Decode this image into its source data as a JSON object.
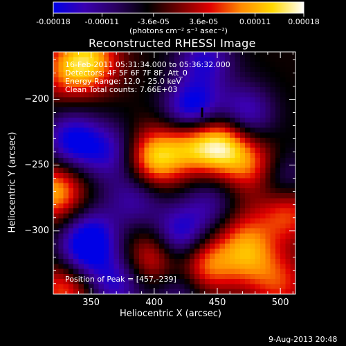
{
  "colorbar": {
    "tick_labels": [
      "-0.00018",
      "-0.00011",
      "-3.6e-05",
      "3.6e-05",
      "0.00011",
      "0.00018"
    ],
    "unit_label": "(photons cm⁻² s⁻¹ asec⁻²)",
    "colors": [
      "#0000e6",
      "#3a00b0",
      "#2a0060",
      "#000000",
      "#700000",
      "#e00000",
      "#ff8a00",
      "#ffd800",
      "#ffffff"
    ]
  },
  "chart_data": {
    "type": "heatmap",
    "title": "Reconstructed RHESSI Image",
    "xlabel": "Heliocentric X (arcsec)",
    "ylabel": "Heliocentric Y (arcsec)",
    "xlim": [
      320,
      512
    ],
    "ylim": [
      -348,
      -164
    ],
    "x_ticks": [
      350,
      400,
      450,
      500
    ],
    "y_ticks": [
      -200,
      -250,
      -300
    ],
    "x_tick_labels": [
      "350",
      "400",
      "450",
      "500"
    ],
    "y_tick_labels": [
      "−200",
      "−250",
      "−300"
    ],
    "value_range": [
      -0.00018,
      0.00018
    ],
    "blobs": [
      {
        "x": 350,
        "y": -170,
        "value": 0.00014
      },
      {
        "x": 330,
        "y": -178,
        "value": 0.0001
      },
      {
        "x": 440,
        "y": -170,
        "value": -0.00011
      },
      {
        "x": 430,
        "y": -210,
        "value": -0.00018
      },
      {
        "x": 472,
        "y": -212,
        "value": -0.00012
      },
      {
        "x": 335,
        "y": -232,
        "value": -0.00014
      },
      {
        "x": 365,
        "y": -240,
        "value": -0.0001
      },
      {
        "x": 400,
        "y": -245,
        "value": 0.00017
      },
      {
        "x": 430,
        "y": -232,
        "value": 0.00015
      },
      {
        "x": 455,
        "y": -235,
        "value": 0.00018
      },
      {
        "x": 480,
        "y": -252,
        "value": 0.00011
      },
      {
        "x": 322,
        "y": -270,
        "value": 0.00015
      },
      {
        "x": 385,
        "y": -275,
        "value": -9e-05
      },
      {
        "x": 500,
        "y": -262,
        "value": -0.0001
      },
      {
        "x": 505,
        "y": -285,
        "value": 0.00012
      },
      {
        "x": 445,
        "y": -280,
        "value": -8e-05
      },
      {
        "x": 350,
        "y": -305,
        "value": -0.00013
      },
      {
        "x": 420,
        "y": -305,
        "value": -0.00015
      },
      {
        "x": 470,
        "y": -300,
        "value": 6e-05
      },
      {
        "x": 400,
        "y": -320,
        "value": 0.00012
      },
      {
        "x": 440,
        "y": -325,
        "value": 0.00014
      },
      {
        "x": 475,
        "y": -320,
        "value": 0.00011
      },
      {
        "x": 340,
        "y": -322,
        "value": -9e-05
      },
      {
        "x": 330,
        "y": -342,
        "value": 0.00013
      },
      {
        "x": 500,
        "y": -340,
        "value": 9e-05
      },
      {
        "x": 370,
        "y": -340,
        "value": -0.00011
      },
      {
        "x": 420,
        "y": -345,
        "value": -8e-05
      }
    ],
    "annotations": [
      "16-Feb-2011 05:31:34.000 to 05:36:32.000",
      "Detectors: 4F 5F 6F 7F 8F, Att_0",
      "Energy Range: 12.0 - 25.0 keV",
      "Clean     Total counts: 7.66E+03"
    ],
    "peak_label": "Position of Peak = [457,-239]",
    "peak": [
      457,
      -239
    ],
    "marker": {
      "x": 438,
      "y": -210
    }
  },
  "footer": {
    "timestamp": "9-Aug-2013 20:48"
  }
}
